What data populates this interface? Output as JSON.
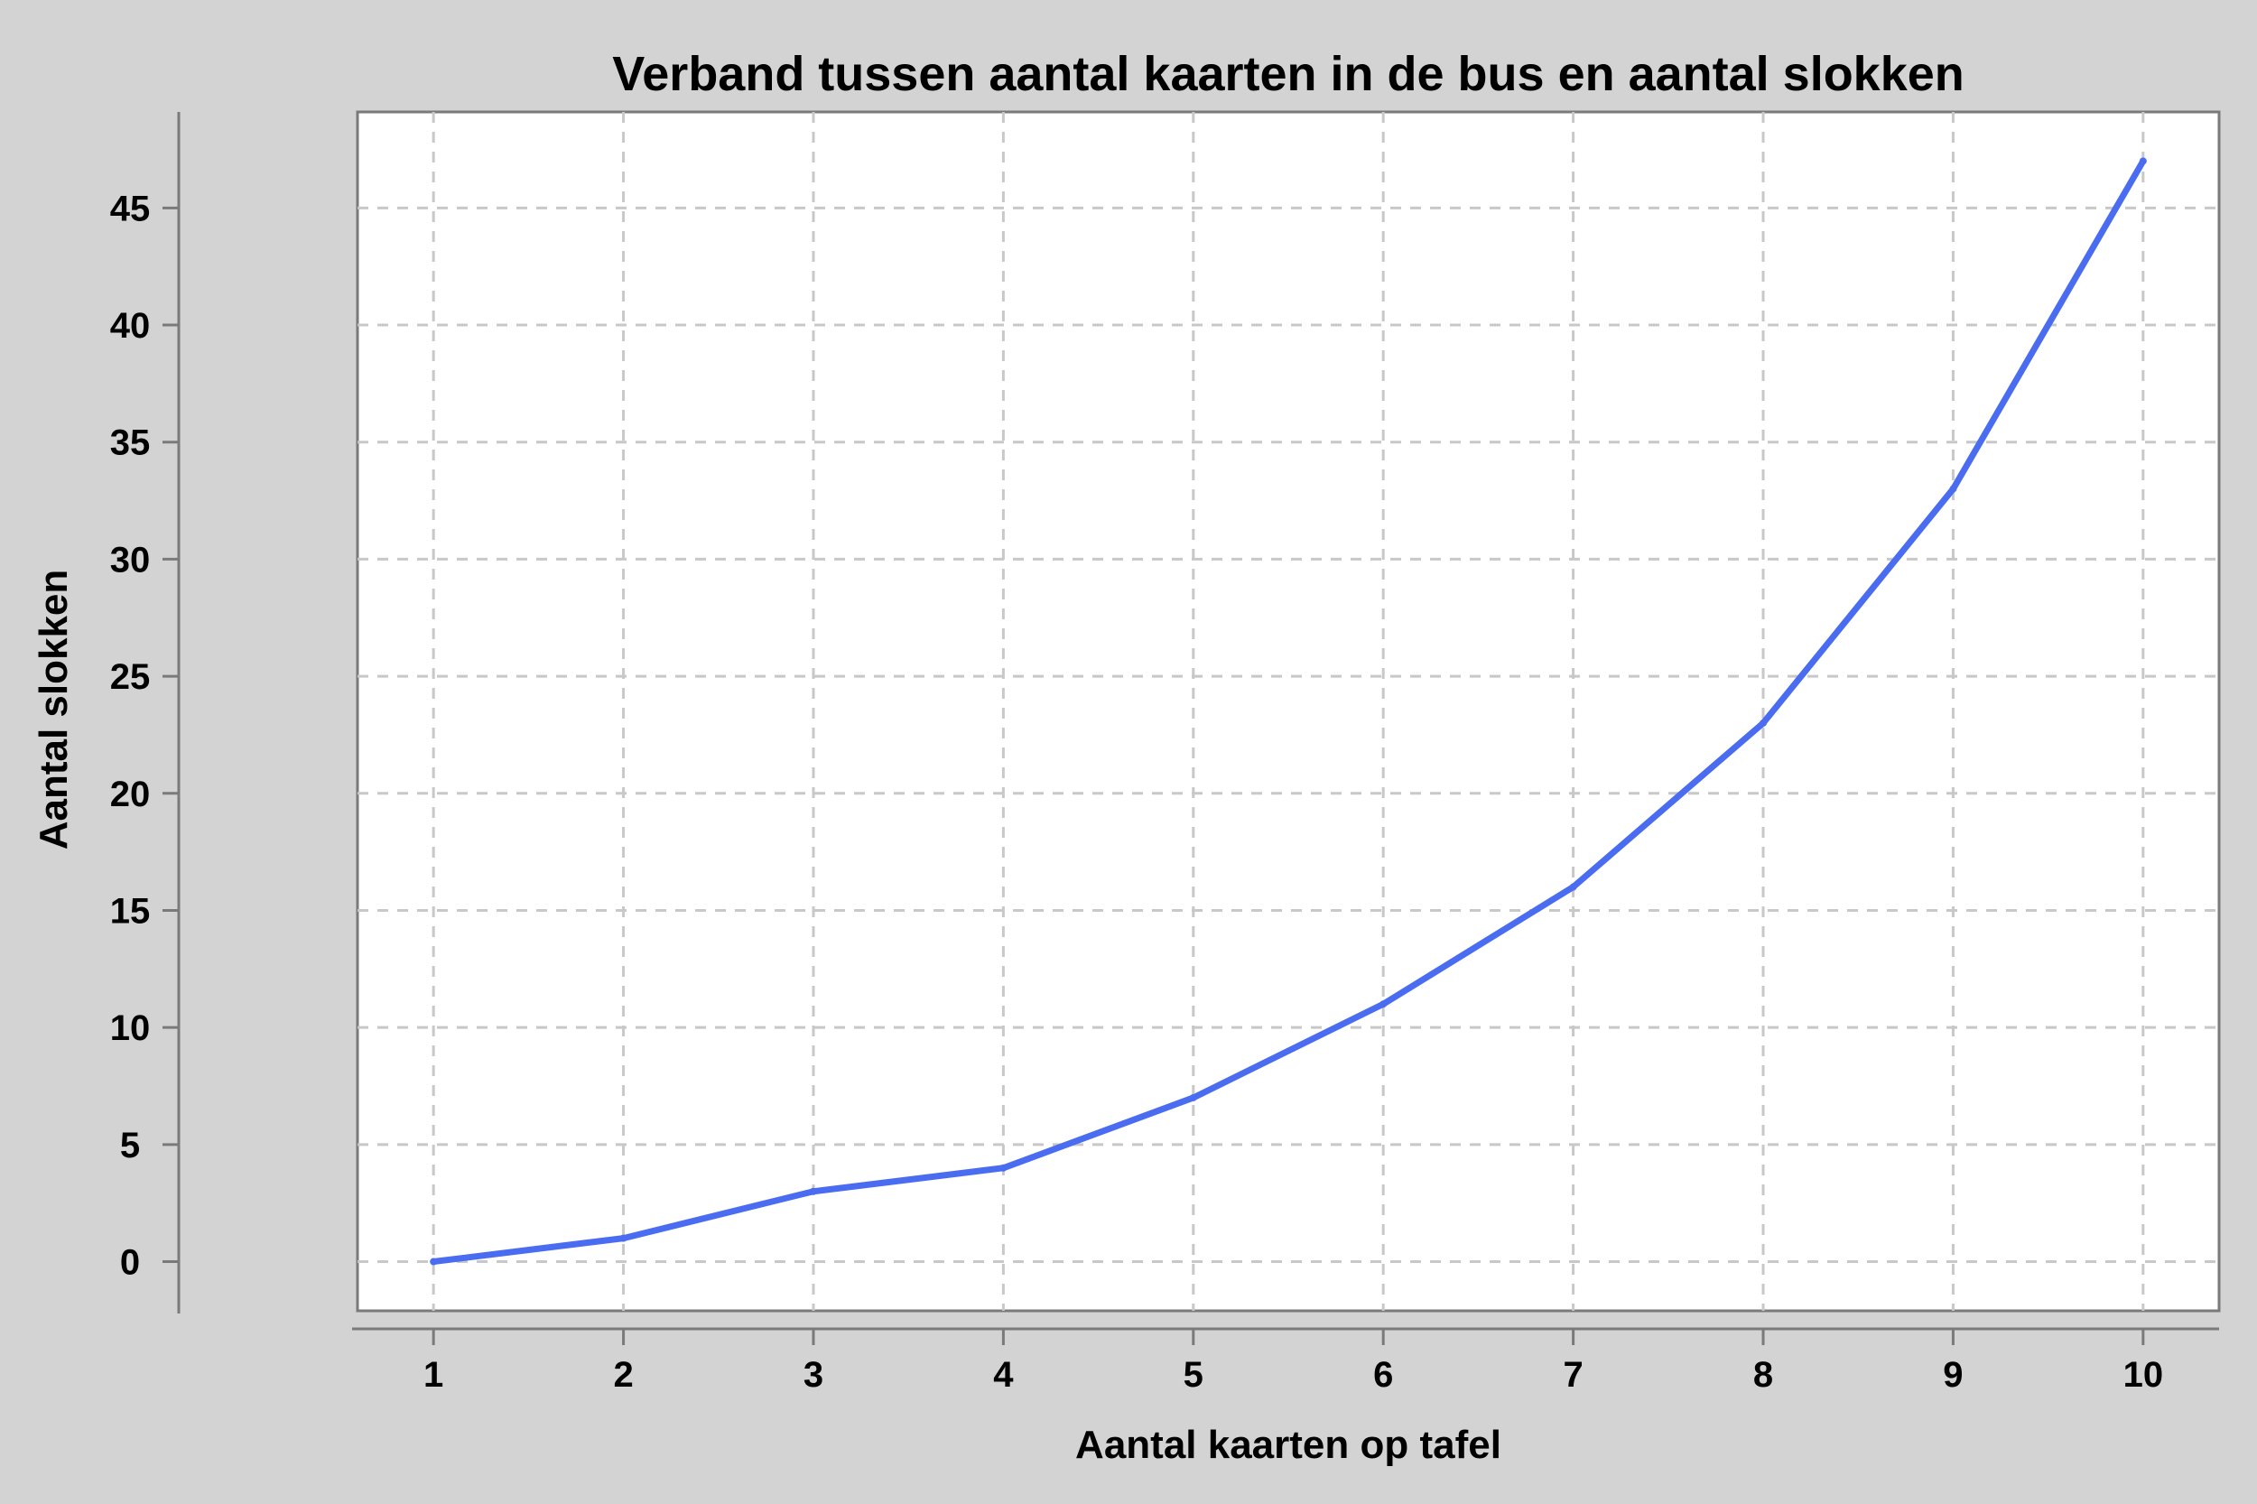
{
  "chart_data": {
    "type": "line",
    "title": "Verband tussen aantal kaarten in de bus en aantal slokken",
    "xlabel": "Aantal kaarten op tafel",
    "ylabel": "Aantal slokken",
    "x": [
      1,
      2,
      3,
      4,
      5,
      6,
      7,
      8,
      9,
      10
    ],
    "series": [
      {
        "values": [
          0,
          1,
          3,
          4,
          7,
          11,
          16,
          23,
          33,
          47
        ]
      }
    ],
    "xticks": [
      1,
      2,
      3,
      4,
      5,
      6,
      7,
      8,
      9,
      10
    ],
    "yticks": [
      0,
      5,
      10,
      15,
      20,
      25,
      30,
      35,
      40,
      45
    ],
    "xlim": [
      0.6,
      10.4
    ],
    "ylim": [
      -2.1,
      49.1
    ],
    "grid": true,
    "line_color": "#4a6cf0",
    "background_color": "#d3d3d3",
    "plot_background_color": "#ffffff"
  }
}
